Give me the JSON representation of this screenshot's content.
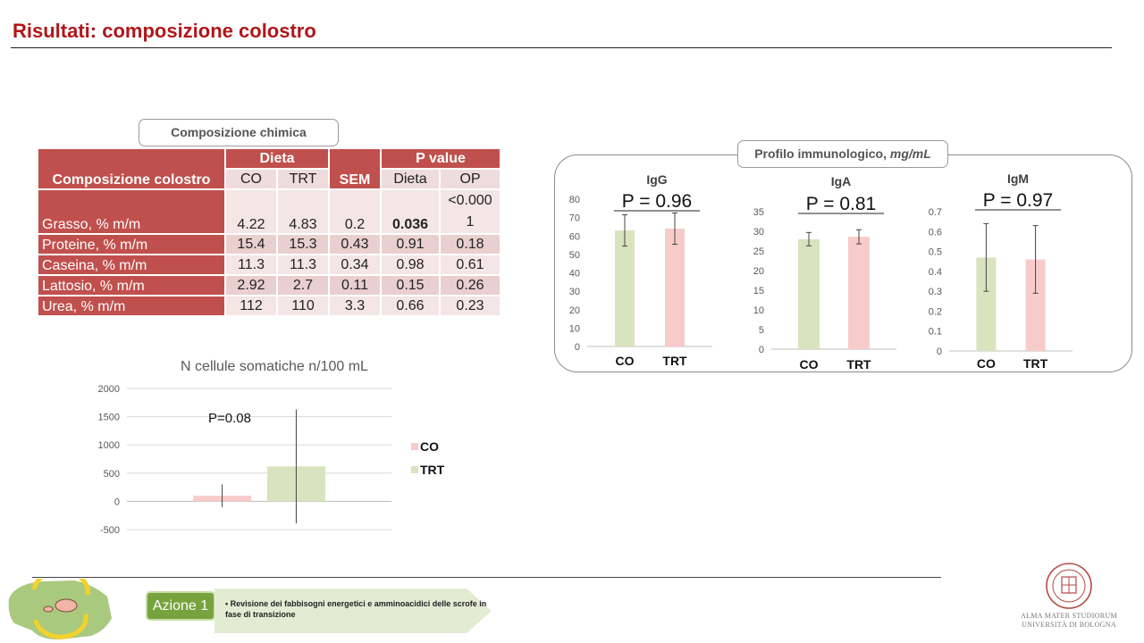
{
  "slide": {
    "title": "Risultati: composizione colostro",
    "chem_label": "Composizione chimica",
    "immuno_label_main": "Profilo immunologico,",
    "immuno_label_unit": "mg/mL"
  },
  "table": {
    "row_header": "Composizione colostro",
    "dieta_header": "Dieta",
    "sem_header": "SEM",
    "pvalue_header": "P value",
    "sub_co": "CO",
    "sub_trt": "TRT",
    "sub_dieta": "Dieta",
    "sub_op": "OP",
    "rows": [
      {
        "label": "Grasso, % m/m",
        "co": "4.22",
        "trt": "4.83",
        "sem": "0.2",
        "dieta": "0.036",
        "op": "<0.000 1"
      },
      {
        "label": "Proteine, % m/m",
        "co": "15.4",
        "trt": "15.3",
        "sem": "0.43",
        "dieta": "0.91",
        "op": "0.18"
      },
      {
        "label": "Caseina, % m/m",
        "co": "11.3",
        "trt": "11.3",
        "sem": "0.34",
        "dieta": "0.98",
        "op": "0.61"
      },
      {
        "label": "Lattosio, % m/m",
        "co": "2.92",
        "trt": "2.7",
        "sem": "0.11",
        "dieta": "0.15",
        "op": "0.26"
      },
      {
        "label": "Urea, % m/m",
        "co": "112",
        "trt": "110",
        "sem": "3.3",
        "dieta": "0.66",
        "op": "0.23"
      }
    ]
  },
  "footer": {
    "azione": "Azione 1",
    "bullet": "Revisione dei fabbisogni energetici e amminoacidici delle scrofe in fase di transizione",
    "uni_line1": "ALMA MATER STUDIORUM",
    "uni_line2": "UNIVERSITÀ DI BOLOGNA"
  },
  "colors": {
    "accent_red": "#b0161a",
    "table_header": "#c0504d",
    "bar_green": "#d7e4bd",
    "bar_pink": "#f8cbcb"
  },
  "chart_data": [
    {
      "id": "igg",
      "type": "bar",
      "title": "IgG",
      "annotation": "P = 0.96",
      "categories": [
        "CO",
        "TRT"
      ],
      "values": [
        63,
        64
      ],
      "errors": [
        8.5,
        8.5
      ],
      "colors": [
        "#d7e4bd",
        "#f8cbcb"
      ],
      "ylim": [
        0,
        80
      ],
      "ticks": [
        0,
        10,
        20,
        30,
        40,
        50,
        60,
        70,
        80
      ],
      "grid": false
    },
    {
      "id": "iga",
      "type": "bar",
      "title": "IgA",
      "annotation": "P = 0.81",
      "categories": [
        "CO",
        "TRT"
      ],
      "values": [
        28,
        28.6
      ],
      "errors": [
        1.7,
        1.8
      ],
      "colors": [
        "#d7e4bd",
        "#f8cbcb"
      ],
      "ylim": [
        0,
        35
      ],
      "ticks": [
        0,
        5,
        10,
        15,
        20,
        25,
        30,
        35
      ],
      "grid": false
    },
    {
      "id": "igm",
      "type": "bar",
      "title": "IgM",
      "annotation": "P = 0.97",
      "categories": [
        "CO",
        "TRT"
      ],
      "values": [
        0.47,
        0.46
      ],
      "errors": [
        0.17,
        0.17
      ],
      "colors": [
        "#d7e4bd",
        "#f8cbcb"
      ],
      "ylim": [
        0,
        0.7
      ],
      "ticks": [
        0,
        0.1,
        0.2,
        0.3,
        0.4,
        0.5,
        0.6,
        0.7
      ],
      "grid": false
    },
    {
      "id": "scc",
      "type": "bar",
      "title": "N cellule somatiche n/100 mL",
      "annotation": "P=0.08",
      "categories": [
        "CO",
        "TRT"
      ],
      "values": [
        100,
        620
      ],
      "errors": [
        200,
        1010
      ],
      "colors": [
        "#f8cbcb",
        "#d7e4bd"
      ],
      "legend": [
        "CO",
        "TRT"
      ],
      "legend_position": "right",
      "ylim": [
        -500,
        2000
      ],
      "ticks": [
        -500,
        0,
        500,
        1000,
        1500,
        2000
      ],
      "grid": true
    }
  ]
}
